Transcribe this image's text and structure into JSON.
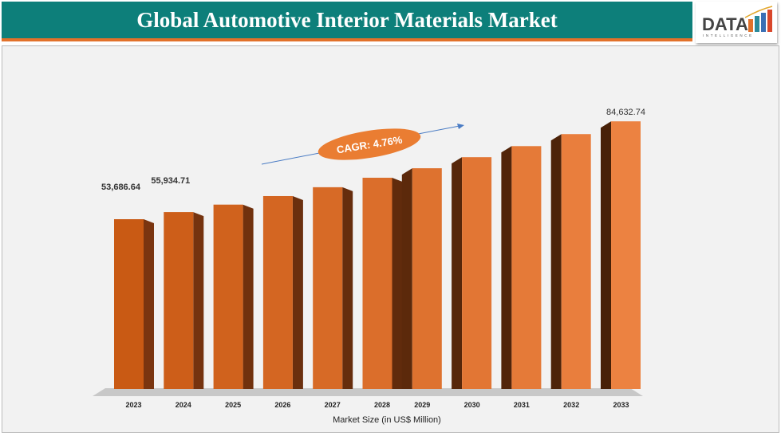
{
  "header": {
    "title": "Global Automotive Interior Materials Market"
  },
  "logo": {
    "text": "DATA",
    "subtext": "INTELLIGENCE"
  },
  "chart_data": {
    "type": "bar",
    "title": "",
    "xlabel": "Market Size (in US$ Million)",
    "ylabel": "",
    "categories": [
      "2023",
      "2024",
      "2025",
      "2026",
      "2027",
      "2028",
      "2029",
      "2030",
      "2031",
      "2032",
      "2033"
    ],
    "values": [
      53686.64,
      55934.71,
      58300,
      61000,
      63800,
      66800,
      69800,
      73300,
      76800,
      80600,
      84632.74
    ],
    "data_labels": {
      "0": "53,686.64",
      "1": "55,934.71",
      "10": "84,632.74"
    },
    "annotation": "CAGR: 4.76%",
    "colors": {
      "bar": "#d2641c",
      "bar_side": "#7a3510",
      "header": "#0d7f7a",
      "accent": "#e2712a",
      "arrow": "#4a7cc4"
    },
    "grid": false
  }
}
